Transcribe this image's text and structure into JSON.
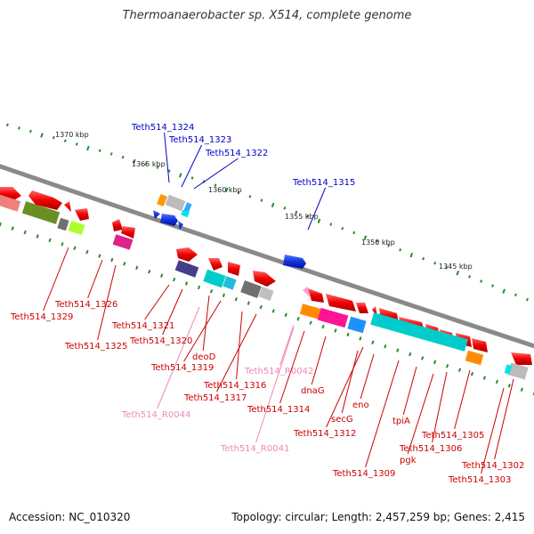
{
  "title": "Thermoanaerobacter sp. X514, complete genome",
  "footer": {
    "accession": "Accession: NC_010320",
    "topology": "Topology: circular; Length: 2,457,259 bp; Genes: 2,415"
  },
  "scale_ticks": [
    {
      "label": "1370 kbp"
    },
    {
      "label": "1365 kbp"
    },
    {
      "label": "1360 kbp"
    },
    {
      "label": "1355 kbp"
    },
    {
      "label": "1350 kbp"
    },
    {
      "label": "1345 kbp"
    }
  ],
  "gene_labels": [
    {
      "text": "Teth514_1324",
      "color": "#0000cc"
    },
    {
      "text": "Teth514_1323",
      "color": "#0000cc"
    },
    {
      "text": "Teth514_1322",
      "color": "#0000cc"
    },
    {
      "text": "Teth514_1315",
      "color": "#0000cc"
    },
    {
      "text": "Teth514_1326",
      "color": "#cc0000"
    },
    {
      "text": "Teth514_1329",
      "color": "#cc0000"
    },
    {
      "text": "Teth514_1325",
      "color": "#cc0000"
    },
    {
      "text": "Teth514_1321",
      "color": "#cc0000"
    },
    {
      "text": "Teth514_1320",
      "color": "#cc0000"
    },
    {
      "text": "deoD",
      "color": "#cc0000"
    },
    {
      "text": "Teth514_1319",
      "color": "#cc0000"
    },
    {
      "text": "Teth514_R0042",
      "color": "#ee88bb"
    },
    {
      "text": "Teth514_1316",
      "color": "#cc0000"
    },
    {
      "text": "Teth514_1317",
      "color": "#cc0000"
    },
    {
      "text": "dnaG",
      "color": "#cc0000"
    },
    {
      "text": "Teth514_R0044",
      "color": "#ee88bb"
    },
    {
      "text": "Teth514_1314",
      "color": "#cc0000"
    },
    {
      "text": "eno",
      "color": "#cc0000"
    },
    {
      "text": "secG",
      "color": "#cc0000"
    },
    {
      "text": "tpiA",
      "color": "#cc0000"
    },
    {
      "text": "Teth514_1312",
      "color": "#cc0000"
    },
    {
      "text": "Teth514_1305",
      "color": "#cc0000"
    },
    {
      "text": "Teth514_1306",
      "color": "#cc0000"
    },
    {
      "text": "Teth514_R0041",
      "color": "#ee88bb"
    },
    {
      "text": "pgk",
      "color": "#cc0000"
    },
    {
      "text": "Teth514_1309",
      "color": "#cc0000"
    },
    {
      "text": "Teth514_1302",
      "color": "#cc0000"
    },
    {
      "text": "Teth514_1303",
      "color": "#cc0000"
    }
  ],
  "colors": {
    "backbone": "#888888",
    "scale_dots": "#2a8a2a",
    "forward_genes": "#1a3fdd",
    "reverse_genes": "#ee1111"
  }
}
